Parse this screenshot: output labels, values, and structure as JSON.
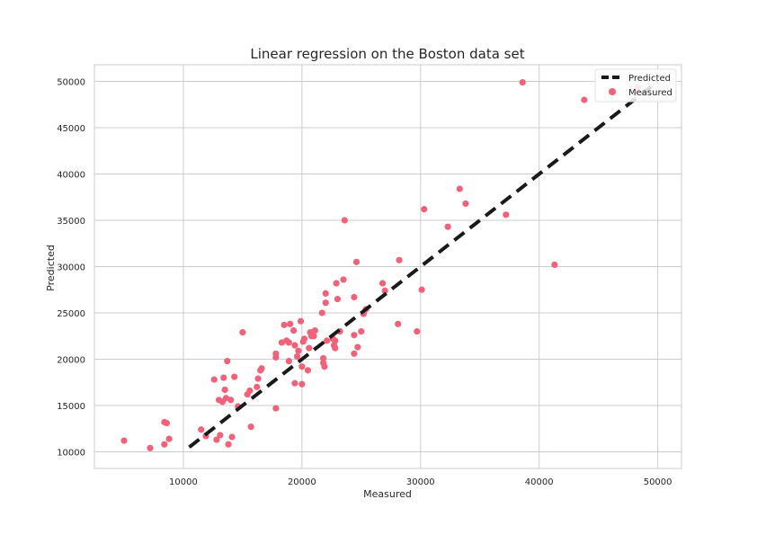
{
  "chart_data": {
    "type": "scatter",
    "title": "Linear regression on the Boston data set",
    "xlabel": "Measured",
    "ylabel": "Predicted",
    "xlim": [
      2500,
      52000
    ],
    "ylim": [
      8200,
      51800
    ],
    "xticks": [
      10000,
      20000,
      30000,
      40000,
      50000
    ],
    "yticks": [
      10000,
      15000,
      20000,
      25000,
      30000,
      35000,
      40000,
      45000,
      50000
    ],
    "grid": true,
    "legend_position": "top-right",
    "colors": {
      "measured": "#f0627a",
      "predicted": "#1a1a1a",
      "grid": "#cccccc",
      "spine": "#cccccc"
    },
    "series": [
      {
        "name": "Predicted",
        "kind": "line",
        "style": "dashed",
        "x": [
          10500,
          50000
        ],
        "y": [
          10500,
          50000
        ]
      },
      {
        "name": "Measured",
        "kind": "scatter",
        "points": [
          [
            5000,
            11200
          ],
          [
            7200,
            10400
          ],
          [
            8400,
            10800
          ],
          [
            8400,
            13200
          ],
          [
            8600,
            13100
          ],
          [
            8800,
            11400
          ],
          [
            11500,
            12400
          ],
          [
            11900,
            11700
          ],
          [
            12600,
            17800
          ],
          [
            12800,
            11300
          ],
          [
            13000,
            15600
          ],
          [
            13100,
            11800
          ],
          [
            13300,
            15400
          ],
          [
            13400,
            18000
          ],
          [
            13500,
            16700
          ],
          [
            13600,
            15800
          ],
          [
            13700,
            19800
          ],
          [
            13800,
            10800
          ],
          [
            14000,
            15600
          ],
          [
            14100,
            11600
          ],
          [
            14300,
            18100
          ],
          [
            14600,
            14900
          ],
          [
            15000,
            22900
          ],
          [
            15400,
            16200
          ],
          [
            15600,
            16600
          ],
          [
            15700,
            12700
          ],
          [
            16200,
            17000
          ],
          [
            16300,
            17900
          ],
          [
            16500,
            18800
          ],
          [
            16600,
            19000
          ],
          [
            17800,
            14700
          ],
          [
            17800,
            20200
          ],
          [
            17800,
            20600
          ],
          [
            18300,
            21800
          ],
          [
            18500,
            23700
          ],
          [
            18700,
            22000
          ],
          [
            18900,
            19800
          ],
          [
            18900,
            21800
          ],
          [
            19000,
            23800
          ],
          [
            19300,
            23100
          ],
          [
            19400,
            17400
          ],
          [
            19400,
            21500
          ],
          [
            19600,
            20300
          ],
          [
            19700,
            20900
          ],
          [
            19900,
            24100
          ],
          [
            20000,
            19200
          ],
          [
            20000,
            17300
          ],
          [
            20100,
            21900
          ],
          [
            20200,
            22200
          ],
          [
            20500,
            18800
          ],
          [
            20600,
            21200
          ],
          [
            20700,
            22900
          ],
          [
            20800,
            22500
          ],
          [
            21000,
            22500
          ],
          [
            21100,
            23100
          ],
          [
            21700,
            25000
          ],
          [
            21800,
            20100
          ],
          [
            21800,
            19600
          ],
          [
            21900,
            19200
          ],
          [
            22000,
            27100
          ],
          [
            22000,
            26100
          ],
          [
            22100,
            22000
          ],
          [
            22600,
            22200
          ],
          [
            22700,
            21500
          ],
          [
            22800,
            21200
          ],
          [
            22800,
            22000
          ],
          [
            22900,
            28200
          ],
          [
            23000,
            26500
          ],
          [
            23200,
            23000
          ],
          [
            23500,
            28600
          ],
          [
            23600,
            35000
          ],
          [
            24400,
            20600
          ],
          [
            24400,
            22600
          ],
          [
            24400,
            26700
          ],
          [
            24600,
            30500
          ],
          [
            24700,
            21300
          ],
          [
            25000,
            23000
          ],
          [
            25200,
            24900
          ],
          [
            25400,
            25400
          ],
          [
            26800,
            28200
          ],
          [
            27000,
            27400
          ],
          [
            28100,
            23800
          ],
          [
            28200,
            30700
          ],
          [
            29700,
            23000
          ],
          [
            30100,
            27500
          ],
          [
            30300,
            36200
          ],
          [
            32300,
            34300
          ],
          [
            33300,
            38400
          ],
          [
            33800,
            36800
          ],
          [
            37200,
            35600
          ],
          [
            38600,
            49900
          ],
          [
            41300,
            30200
          ],
          [
            43800,
            48000
          ],
          [
            48300,
            49300
          ]
        ]
      }
    ]
  }
}
